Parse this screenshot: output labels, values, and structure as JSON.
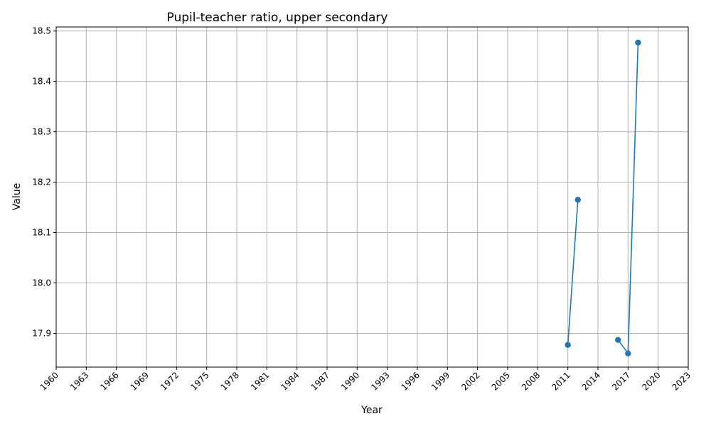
{
  "chart_data": {
    "type": "line",
    "title": "Pupil-teacher ratio, upper secondary",
    "xlabel": "Year",
    "ylabel": "Value",
    "xlim": [
      1960,
      2023
    ],
    "ylim": [
      17.833,
      18.508
    ],
    "x_ticks": [
      1960,
      1963,
      1966,
      1969,
      1972,
      1975,
      1978,
      1981,
      1984,
      1987,
      1990,
      1993,
      1996,
      1999,
      2002,
      2005,
      2008,
      2011,
      2014,
      2017,
      2020,
      2023
    ],
    "y_ticks": [
      17.9,
      18.0,
      18.1,
      18.2,
      18.3,
      18.4,
      18.5
    ],
    "grid": true,
    "series": [
      {
        "color": "#1f77b4",
        "segments": [
          [
            {
              "x": 2011,
              "y": 17.877
            },
            {
              "x": 2012,
              "y": 18.165
            }
          ],
          [
            {
              "x": 2016,
              "y": 17.887
            },
            {
              "x": 2017,
              "y": 17.86
            },
            {
              "x": 2018,
              "y": 18.477
            }
          ]
        ]
      }
    ]
  }
}
